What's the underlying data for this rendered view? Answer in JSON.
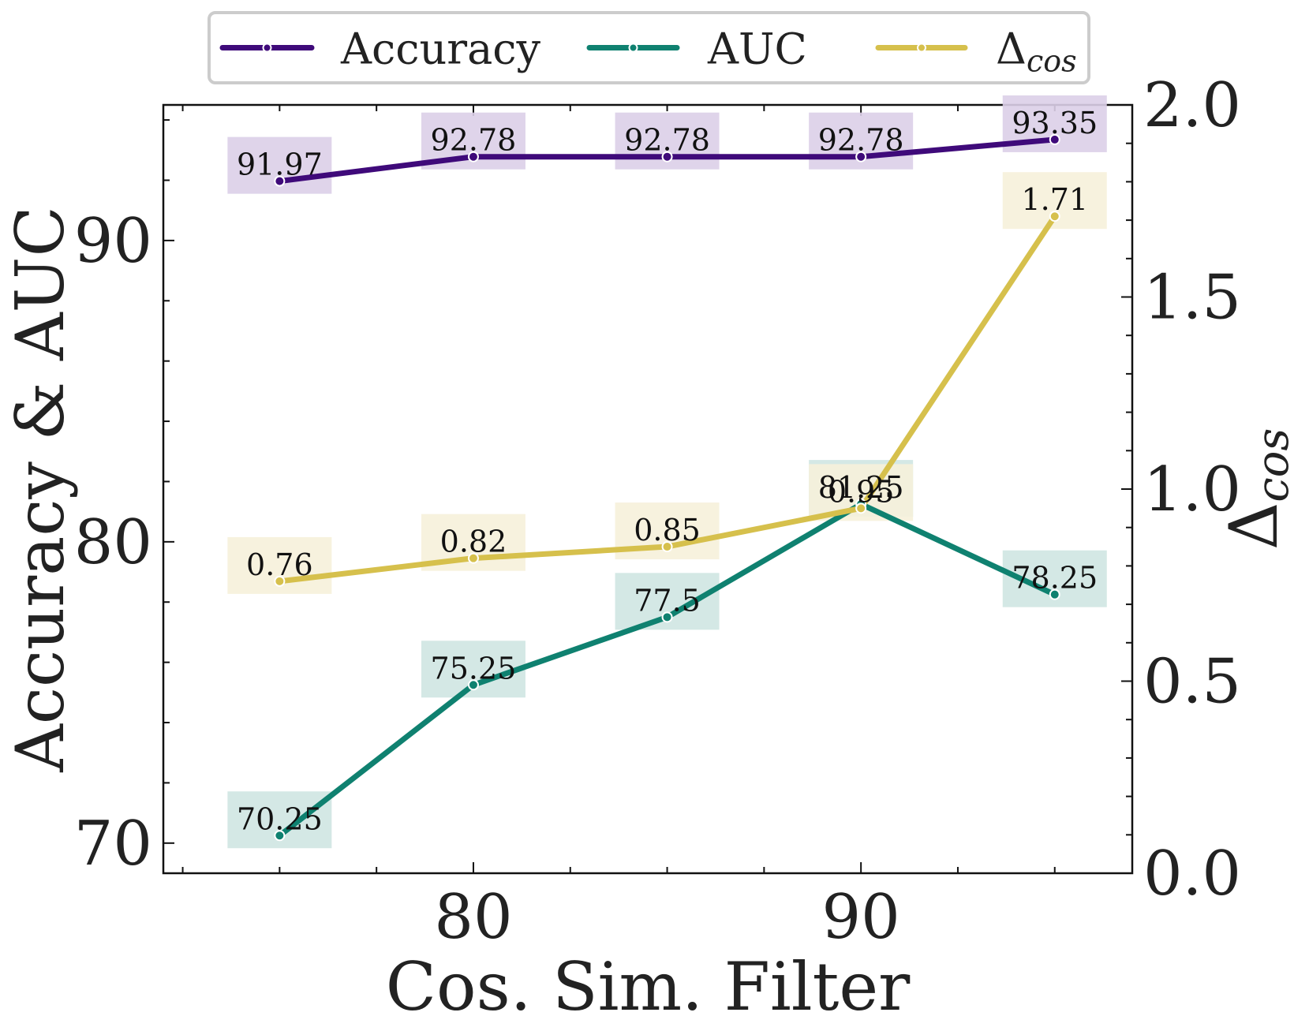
{
  "chart_data": {
    "type": "line",
    "title": "",
    "xlabel": "Cos. Sim. Filter",
    "ylabel": "Accuracy & AUC",
    "y2label": "Δcos",
    "y2label_main": "Δ",
    "y2label_sub": "cos",
    "x": [
      75,
      80,
      85,
      90,
      95
    ],
    "xlim": [
      72,
      97
    ],
    "xticks": [
      80,
      90
    ],
    "xtick_labels": [
      "80",
      "90"
    ],
    "ylim": [
      69,
      94.5
    ],
    "yticks": [
      70,
      80,
      90
    ],
    "ytick_labels": [
      "70",
      "80",
      "90"
    ],
    "y2lim": [
      0,
      2
    ],
    "y2ticks": [
      0,
      0.5,
      1.0,
      1.5,
      2.0
    ],
    "y2tick_labels": [
      "0.0",
      "0.5",
      "1.0",
      "1.5",
      "2.0"
    ],
    "series": [
      {
        "name": "Accuracy",
        "axis": "left",
        "color": "#3f0a7a",
        "label_bg": "#dccfe8",
        "values": [
          91.97,
          92.78,
          92.78,
          92.78,
          93.35
        ],
        "labels": [
          "91.97",
          "92.78",
          "92.78",
          "92.78",
          "93.35"
        ]
      },
      {
        "name": "AUC",
        "axis": "left",
        "color": "#0f8170",
        "label_bg": "#cfe6e2",
        "values": [
          70.25,
          75.25,
          77.5,
          81.25,
          78.25
        ],
        "labels": [
          "70.25",
          "75.25",
          "77.5",
          "81.25",
          "78.25"
        ]
      },
      {
        "name": "Δcos",
        "name_main": "Δ",
        "name_sub": "cos",
        "axis": "right",
        "color": "#d6c04c",
        "label_bg": "#f6f1da",
        "values": [
          0.76,
          0.82,
          0.85,
          0.95,
          1.71
        ],
        "labels": [
          "0.76",
          "0.82",
          "0.85",
          "0.95",
          "1.71"
        ]
      }
    ],
    "legend": {
      "position": "top-center",
      "columns": 3
    }
  }
}
